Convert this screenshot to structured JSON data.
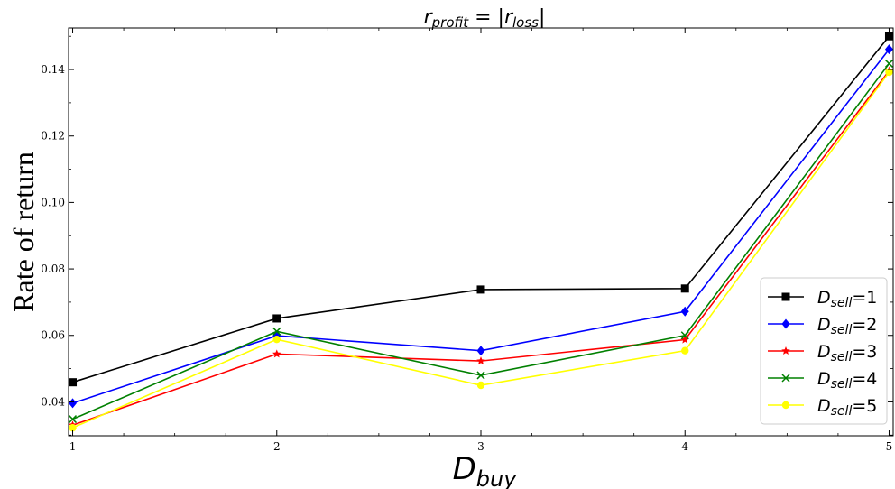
{
  "chart_data": {
    "type": "line",
    "title": {
      "main": "r",
      "main_sub": "profit",
      "eq": " = |",
      "var": "r",
      "var_sub": "loss",
      "close": "|"
    },
    "xlabel": {
      "main": "D",
      "sub": "buy"
    },
    "ylabel": "Rate of return",
    "x": [
      1,
      2,
      3,
      4,
      5
    ],
    "x_ticks": [
      "1",
      "2",
      "3",
      "4",
      "5"
    ],
    "y_ticks": [
      "0.04",
      "0.06",
      "0.08",
      "0.10",
      "0.12",
      "0.14"
    ],
    "y_tick_values": [
      0.04,
      0.06,
      0.08,
      0.1,
      0.12,
      0.14
    ],
    "xlim": [
      0.98,
      5.02
    ],
    "ylim": [
      0.0298,
      0.1525
    ],
    "grid": false,
    "legend_position": "bottom-right",
    "series": [
      {
        "name": "=1",
        "name_prefix": "D",
        "name_sub": "sell",
        "color": "#000000",
        "marker": "square",
        "values": [
          0.0459,
          0.0651,
          0.0738,
          0.0741,
          0.15
        ]
      },
      {
        "name": "=2",
        "name_prefix": "D",
        "name_sub": "sell",
        "color": "#0000ff",
        "marker": "diamond",
        "values": [
          0.0396,
          0.0599,
          0.0554,
          0.0672,
          0.1461
        ]
      },
      {
        "name": "=3",
        "name_prefix": "D",
        "name_sub": "sell",
        "color": "#ff0000",
        "marker": "star",
        "values": [
          0.033,
          0.0544,
          0.0523,
          0.0587,
          0.1396
        ]
      },
      {
        "name": "=4",
        "name_prefix": "D",
        "name_sub": "sell",
        "color": "#008000",
        "marker": "x",
        "values": [
          0.0348,
          0.0612,
          0.048,
          0.06,
          0.1418
        ]
      },
      {
        "name": "=5",
        "name_prefix": "D",
        "name_sub": "sell",
        "color": "#ffff00",
        "marker": "circle",
        "values": [
          0.0322,
          0.0588,
          0.045,
          0.0554,
          0.1392
        ]
      }
    ]
  }
}
